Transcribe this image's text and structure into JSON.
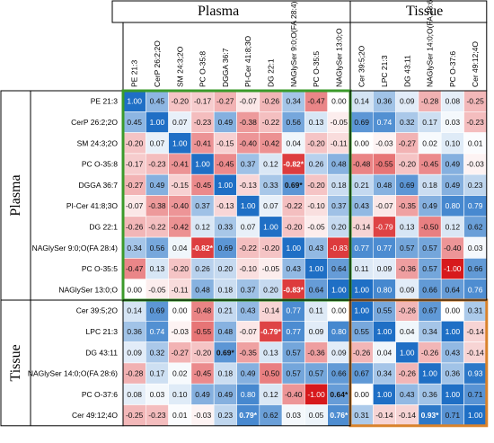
{
  "chart_data": {
    "type": "heatmap",
    "top_groups": [
      {
        "label": "Plasma",
        "count": 10
      },
      {
        "label": "Tissue",
        "count": 6
      }
    ],
    "side_groups": [
      {
        "label": "Plasma",
        "count": 10
      },
      {
        "label": "Tissue",
        "count": 6
      }
    ],
    "columns": [
      "PE 21:3",
      "CerP 26:2;2O",
      "SM 24:3;2O",
      "PC O-35:8",
      "DGGA 36:7",
      "PI-Cer 41:8;3O",
      "DG 22:1",
      "NAGlySer 9:0;O(FA 28:4)",
      "PC O-35:5",
      "NAGlySer 13:0;O",
      "Cer 39:5;2O",
      "LPC 21:3",
      "DG 43:11",
      "NAGlySer 14:0;O(FA 28:6)",
      "PC O-37:6",
      "Cer 49:12;4O"
    ],
    "rows": [
      "PE 21:3",
      "CerP 26:2;2O",
      "SM 24:3;2O",
      "PC O-35:8",
      "DGGA 36:7",
      "PI-Cer 41:8;3O",
      "DG 22:1",
      "NAGlySer 9:0;O(FA 28:4)",
      "PC O-35:5",
      "NAGlySer 13:0;O",
      "Cer 39:5;2O",
      "LPC 21:3",
      "DG 43:11",
      "NAGlySer 14:0;O(FA 28:6)",
      "PC O-37:6",
      "Cer 49:12;4O"
    ],
    "cells": [
      [
        "1.00",
        "0.45",
        "-0.20",
        "-0.17",
        "-0.27",
        "-0.07",
        "-0.26",
        "0.34",
        "-0.47",
        "0.00",
        "0.14",
        "0.36",
        "0.09",
        "-0.28",
        "0.08",
        "-0.25"
      ],
      [
        "0.45",
        "1.00",
        "0.07",
        "-0.23",
        "0.49",
        "-0.38",
        "-0.22",
        "0.56",
        "0.13",
        "-0.05",
        "0.69",
        "0.74",
        "0.32",
        "0.17",
        "0.03",
        "-0.23"
      ],
      [
        "-0.20",
        "0.07",
        "1.00",
        "-0.41",
        "-0.15",
        "-0.40",
        "-0.42",
        "0.04",
        "-0.20",
        "-0.11",
        "0.00",
        "-0.03",
        "-0.27",
        "0.02",
        "0.10",
        "0.01"
      ],
      [
        "-0.17",
        "-0.23",
        "-0.41",
        "1.00",
        "-0.45",
        "0.37",
        "0.12",
        "-0.82*",
        "0.26",
        "0.48",
        "-0.48",
        "-0.55",
        "-0.20",
        "-0.45",
        "0.49",
        "-0.03"
      ],
      [
        "-0.27",
        "0.49",
        "-0.15",
        "-0.45",
        "1.00",
        "-0.13",
        "0.33",
        "0.69*",
        "-0.20",
        "0.18",
        "0.21",
        "0.48",
        "0.69",
        "0.18",
        "0.49",
        "0.23"
      ],
      [
        "-0.07",
        "-0.38",
        "-0.40",
        "0.37",
        "-0.13",
        "1.00",
        "0.07",
        "-0.22",
        "-0.10",
        "0.37",
        "0.43",
        "-0.07",
        "-0.35",
        "0.49",
        "0.80",
        "0.79"
      ],
      [
        "-0.26",
        "-0.22",
        "-0.42",
        "0.12",
        "0.33",
        "0.07",
        "1.00",
        "-0.20",
        "-0.05",
        "0.20",
        "-0.14",
        "-0.79",
        "0.13",
        "-0.50",
        "0.12",
        "0.62"
      ],
      [
        "0.34",
        "0.56",
        "0.04",
        "-0.82*",
        "0.69",
        "-0.22",
        "-0.20",
        "1.00",
        "0.43",
        "-0.83",
        "0.77",
        "0.77",
        "0.57",
        "0.57",
        "-0.40",
        "0.03"
      ],
      [
        "-0.47",
        "0.13",
        "-0.20",
        "0.26",
        "0.20",
        "-0.10",
        "-0.05",
        "0.43",
        "1.00",
        "0.64",
        "0.11",
        "0.09",
        "-0.36",
        "0.57",
        "-1.00",
        "0.66"
      ],
      [
        "0.00",
        "-0.05",
        "-0.11",
        "0.48",
        "0.18",
        "0.37",
        "0.20",
        "-0.83*",
        "0.64",
        "1.00",
        "1.00",
        "0.80",
        "0.09",
        "0.66",
        "0.64",
        "0.76"
      ],
      [
        "0.14",
        "0.69",
        "0.00",
        "-0.48",
        "0.21",
        "0.43",
        "-0.14",
        "0.77",
        "0.11",
        "0.00",
        "1.00",
        "0.55",
        "-0.26",
        "0.67",
        "0.00",
        "0.31"
      ],
      [
        "0.36",
        "0.74",
        "-0.03",
        "-0.55",
        "0.48",
        "-0.07",
        "-0.79*",
        "0.77",
        "0.09",
        "0.80",
        "0.55",
        "1.00",
        "0.04",
        "0.34",
        "1.00",
        "-0.14"
      ],
      [
        "0.09",
        "0.32",
        "-0.27",
        "-0.20",
        "0.69*",
        "-0.35",
        "0.13",
        "0.57",
        "-0.36",
        "0.09",
        "-0.26",
        "0.04",
        "1.00",
        "-0.26",
        "0.43",
        "-0.14"
      ],
      [
        "-0.28",
        "0.17",
        "0.02",
        "-0.45",
        "0.18",
        "0.49",
        "-0.50",
        "0.57",
        "0.57",
        "0.66",
        "0.67",
        "0.34",
        "-0.26",
        "1.00",
        "0.36",
        "0.93"
      ],
      [
        "0.08",
        "0.03",
        "0.10",
        "0.49",
        "0.49",
        "0.80",
        "0.12",
        "-0.40",
        "-1.00",
        "0.64*",
        "0.00",
        "1.00",
        "0.43",
        "0.36",
        "1.00",
        "0.71"
      ],
      [
        "-0.25",
        "-0.23",
        "0.01",
        "-0.03",
        "0.23",
        "0.79*",
        "0.62",
        "0.03",
        "0.05",
        "0.76*",
        "0.31",
        "-0.14",
        "-0.14",
        "0.93*",
        "0.71",
        "1.00"
      ]
    ],
    "color_scale": {
      "min": -1,
      "max": 1,
      "negative": "#d7191c",
      "neutral": "#ffffff",
      "positive": "#1f6fc5"
    },
    "highlight_colors": {
      "plasma_plasma": "#3a9a2a",
      "tissue_tissue": "#d9822b"
    }
  }
}
